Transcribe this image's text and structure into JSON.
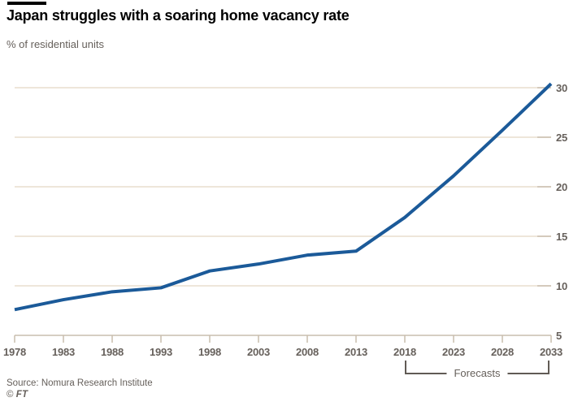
{
  "header": {
    "title": "Japan struggles with a soaring home vacancy rate",
    "subtitle": "% of residential units"
  },
  "annotations": {
    "forecast_label": "Forecasts"
  },
  "footer": {
    "source": "Source: Nomura Research Institute",
    "credit_symbol": "©",
    "credit_name": "FT"
  },
  "colors": {
    "line": "#1b5a99",
    "gridline": "#e9ddcd",
    "axis": "#c9bdae",
    "text_muted": "#66605b",
    "title_text": "#000000",
    "accent_bar": "#000000",
    "background": "#ffffff"
  },
  "chart_data": {
    "type": "line",
    "title": "Japan struggles with a soaring home vacancy rate",
    "subtitle": "% of residential units",
    "xlabel": "",
    "ylabel": "% of residential units",
    "categories": [
      1978,
      1983,
      1988,
      1993,
      1998,
      2003,
      2008,
      2013,
      2018,
      2023,
      2028,
      2033
    ],
    "series": [
      {
        "name": "Home vacancy rate",
        "values": [
          7.6,
          8.6,
          9.4,
          9.8,
          11.5,
          12.2,
          13.1,
          13.5,
          16.9,
          21.1,
          25.7,
          30.4
        ]
      }
    ],
    "xticks": [
      1978,
      1983,
      1988,
      1993,
      1998,
      2003,
      2008,
      2013,
      2018,
      2023,
      2028,
      2033
    ],
    "yticks": [
      5,
      10,
      15,
      20,
      25,
      30
    ],
    "ylim": [
      5,
      30
    ],
    "forecast_start": 2018,
    "forecast_annotation": "Forecasts",
    "grid": true,
    "legend_position": "none",
    "y_axis_side": "right",
    "source": "Source: Nomura Research Institute",
    "credit": "© FT"
  }
}
